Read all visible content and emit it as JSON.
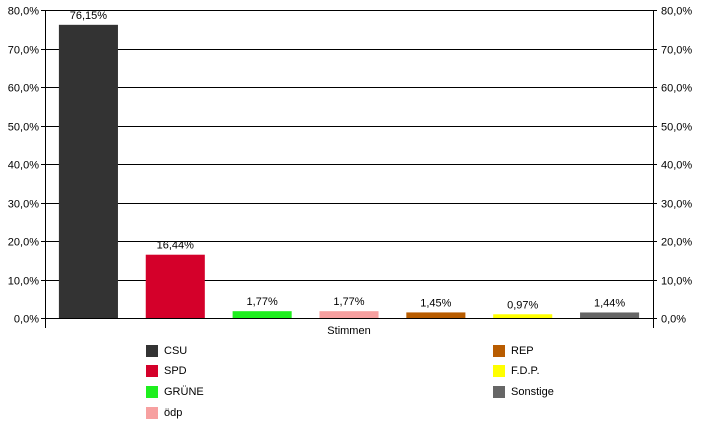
{
  "chart_data": {
    "type": "bar",
    "categories": [
      "CSU",
      "SPD",
      "GRÜNE",
      "ödp",
      "REP",
      "F.D.P.",
      "Sonstige"
    ],
    "values": [
      76.15,
      16.44,
      1.77,
      1.77,
      1.45,
      0.97,
      1.44
    ],
    "data_labels": [
      "76,15%",
      "16,44%",
      "1,77%",
      "1,77%",
      "1,45%",
      "0,97%",
      "1,44%"
    ],
    "colors": [
      "#333333",
      "#d4002a",
      "#1eef1e",
      "#f7a0a0",
      "#b85c00",
      "#ffff00",
      "#666666"
    ],
    "xlabel": "Stimmen",
    "ylim": [
      0,
      80
    ],
    "yticks": [
      0,
      10,
      20,
      30,
      40,
      50,
      60,
      70,
      80
    ],
    "ytick_labels": [
      "0,0%",
      "10,0%",
      "20,0%",
      "30,0%",
      "40,0%",
      "50,0%",
      "60,0%",
      "70,0%",
      "80,0%"
    ],
    "grid": true,
    "legend_position": "bottom",
    "secondary_y_axis": true
  }
}
